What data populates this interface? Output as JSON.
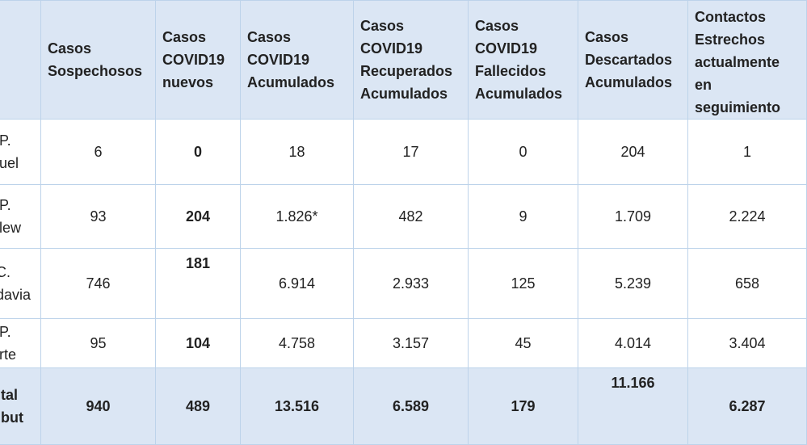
{
  "headers": [
    {
      "lines": [
        "",
        ""
      ]
    },
    {
      "lines": [
        "Casos",
        "Sospechosos"
      ]
    },
    {
      "lines": [
        "Casos",
        "COVID19",
        "nuevos"
      ]
    },
    {
      "lines": [
        "Casos",
        "COVID19",
        "Acumulados"
      ]
    },
    {
      "lines": [
        "Casos",
        "COVID19",
        "Recuperados",
        "Acumulados"
      ]
    },
    {
      "lines": [
        "Casos",
        "COVID19",
        "Fallecidos",
        "Acumulados"
      ]
    },
    {
      "lines": [
        "Casos",
        "Descartados",
        "Acumulados"
      ]
    },
    {
      "lines": [
        "Contactos",
        "Estrechos",
        "actualmente",
        "en",
        "seguimiento"
      ]
    }
  ],
  "rows": [
    {
      "name": [
        "P.",
        "uel"
      ],
      "values": [
        "6",
        "0",
        "18",
        "17",
        "0",
        "204",
        "1"
      ]
    },
    {
      "name": [
        "P.",
        "lew"
      ],
      "values": [
        "93",
        "204",
        "1.826*",
        "482",
        "9",
        "1.709",
        "2.224"
      ]
    },
    {
      "name": [
        "C.",
        "davia"
      ],
      "values": [
        "746",
        "181",
        "6.914",
        "2.933",
        "125",
        "5.239",
        "658"
      ]
    },
    {
      "name": [
        "P.",
        "rte"
      ],
      "values": [
        "95",
        "104",
        "4.758",
        "3.157",
        "45",
        "4.014",
        "3.404"
      ]
    }
  ],
  "total": {
    "name": [
      "tal",
      "but"
    ],
    "values": [
      "940",
      "489",
      "13.516",
      "6.589",
      "179",
      "11.166",
      "6.287"
    ]
  }
}
